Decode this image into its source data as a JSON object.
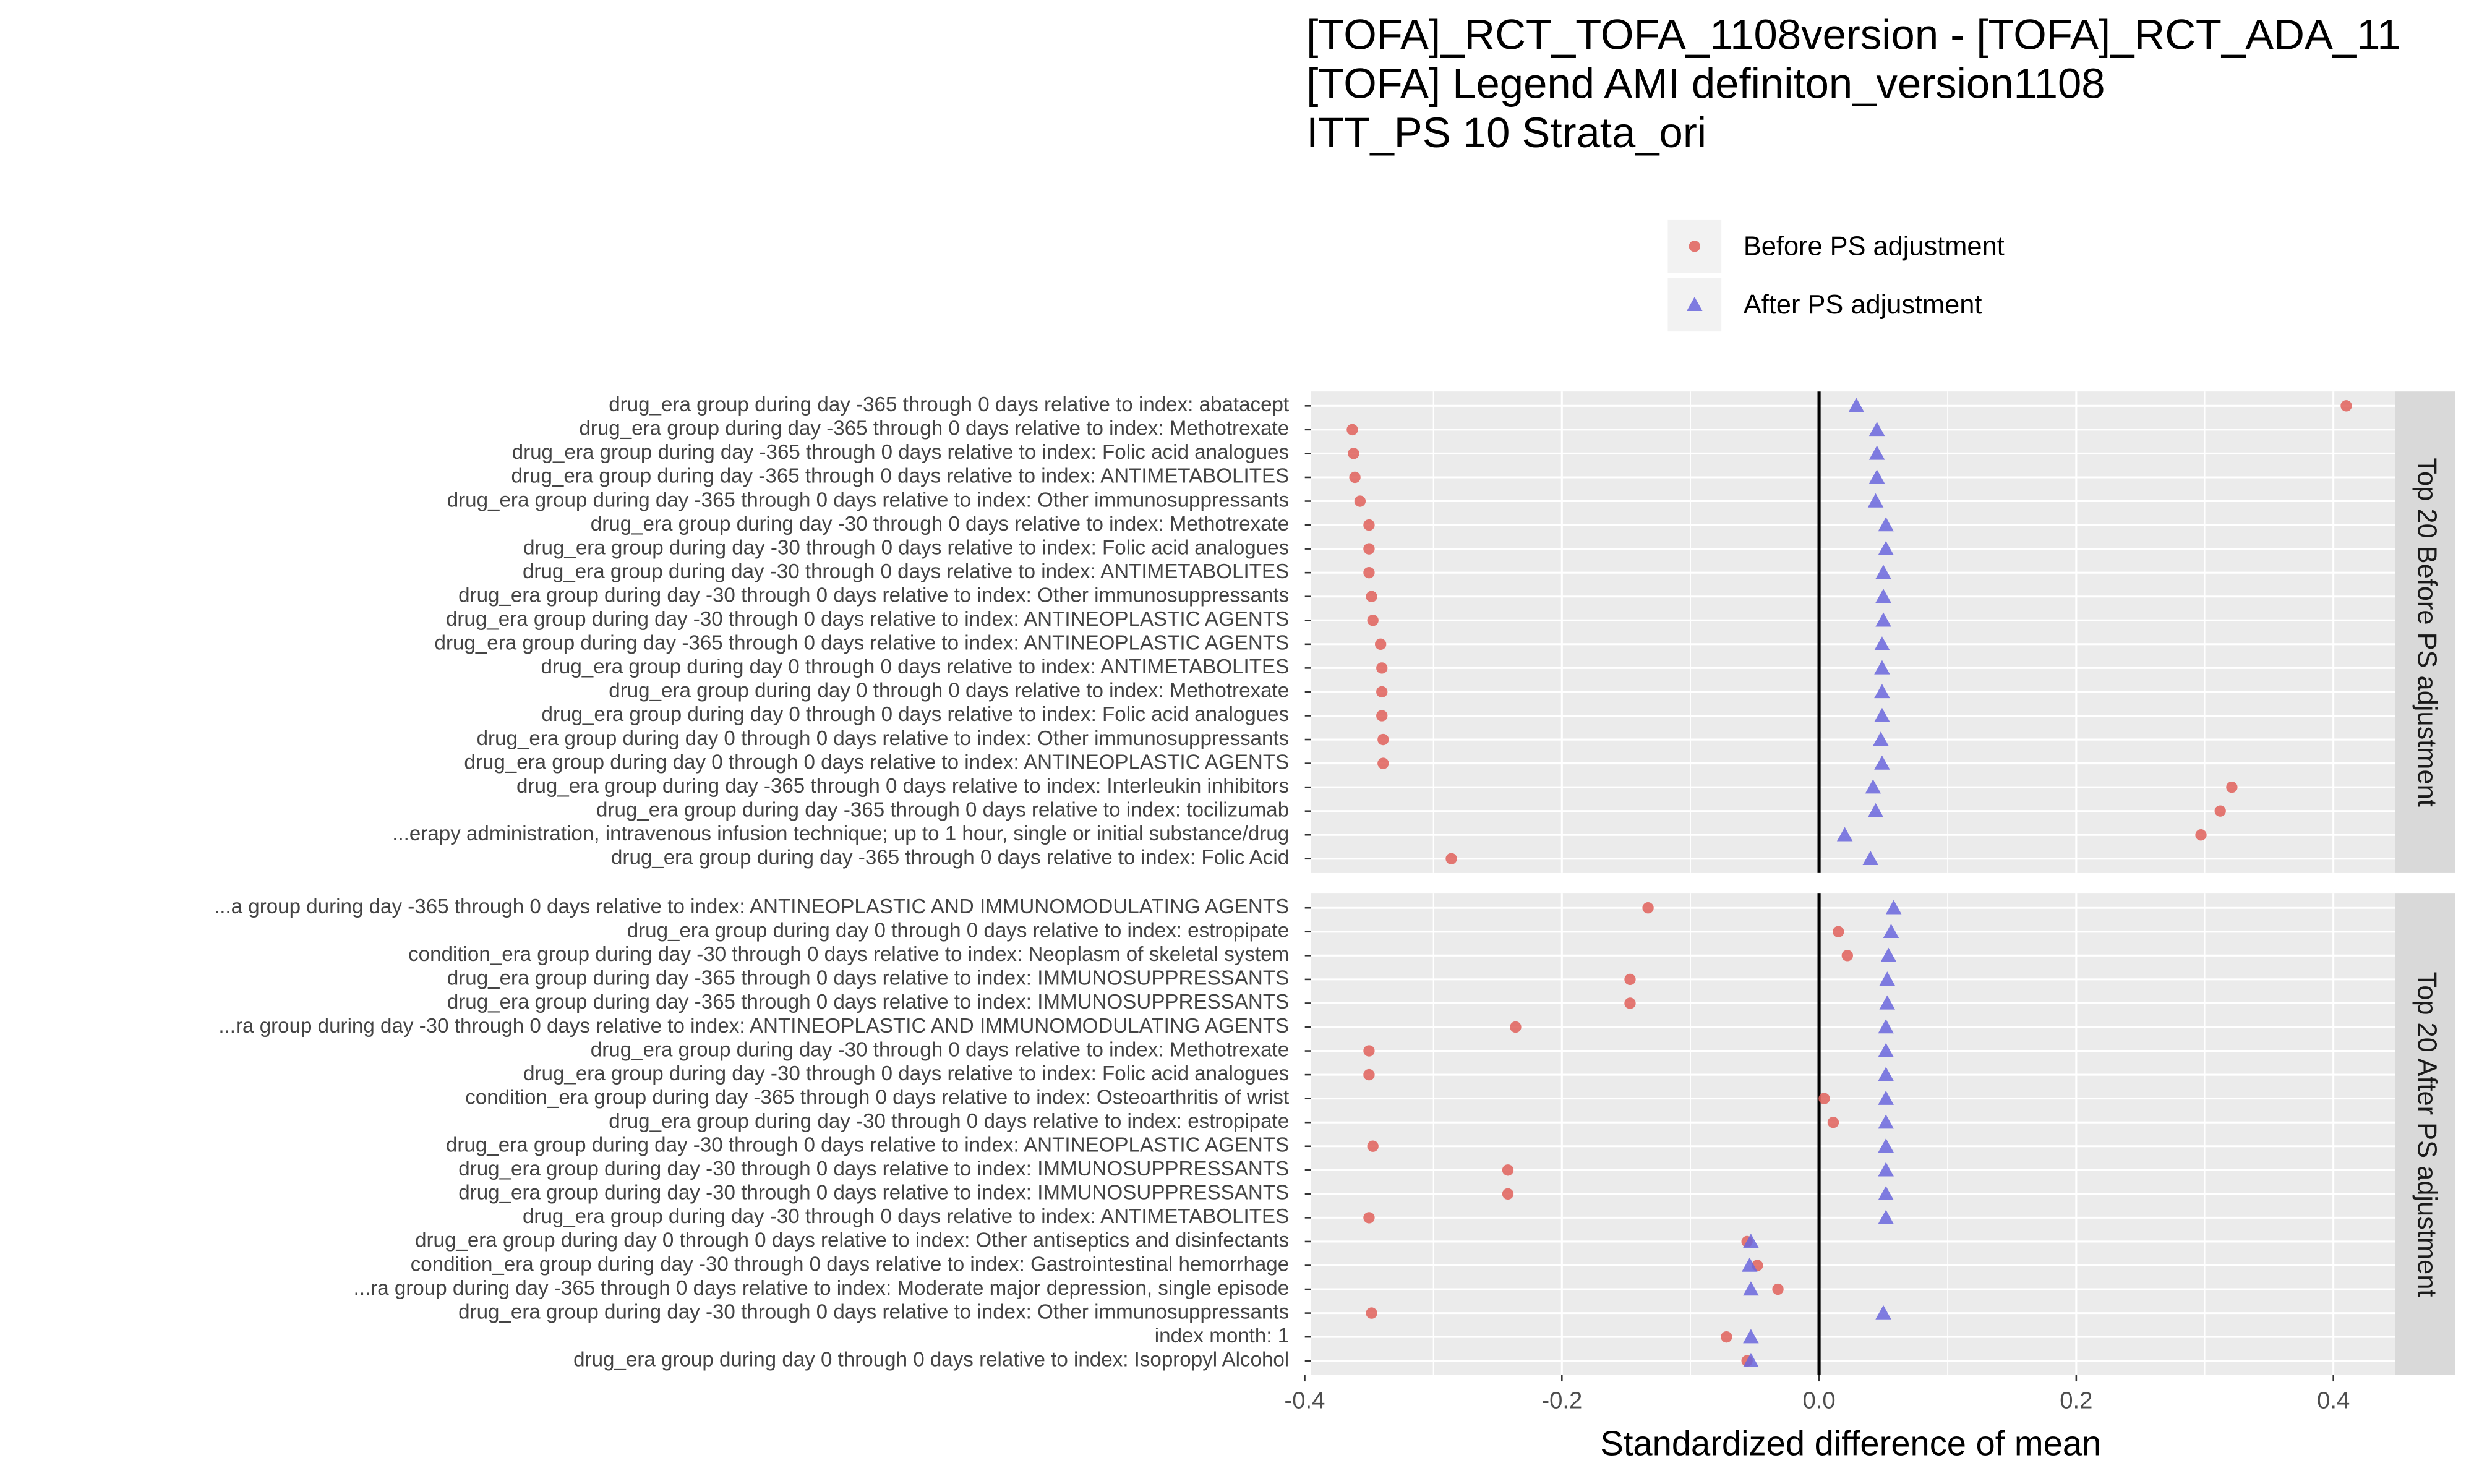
{
  "chart_data": {
    "type": "dot",
    "title": [
      "[TOFA]_RCT_TOFA_1108version - [TOFA]_RCT_ADA_11",
      "[TOFA] Legend AMI definiton_version1108",
      "ITT_PS 10 Strata_ori"
    ],
    "x_label": "Standardized difference of mean",
    "xlim": [
      -0.395,
      0.448
    ],
    "xticks": [
      -0.4,
      -0.2,
      {
        "value": 0,
        "label": "0.0"
      },
      0.2,
      0.4
    ],
    "grid": true,
    "series": [
      {
        "name": "Before PS adjustment",
        "color": "#e0605a",
        "marker": "circle"
      },
      {
        "name": "After PS adjustment",
        "color": "#6a66dd",
        "marker": "triangle"
      }
    ],
    "panels": [
      {
        "title": "Top 20 Before PS adjustment",
        "categories": [
          "drug_era group during day -365 through 0 days relative to index: abatacept",
          "drug_era group during day -365 through 0 days relative to index: Methotrexate",
          "drug_era group during day -365 through 0 days relative to index: Folic acid analogues",
          "drug_era group during day -365 through 0 days relative to index: ANTIMETABOLITES",
          "drug_era group during day -365 through 0 days relative to index: Other immunosuppressants",
          "drug_era group during day -30 through 0 days relative to index: Methotrexate",
          "drug_era group during day -30 through 0 days relative to index: Folic acid analogues",
          "drug_era group during day -30 through 0 days relative to index: ANTIMETABOLITES",
          "drug_era group during day -30 through 0 days relative to index: Other immunosuppressants",
          "drug_era group during day -30 through 0 days relative to index: ANTINEOPLASTIC AGENTS",
          "drug_era group during day -365 through 0 days relative to index: ANTINEOPLASTIC AGENTS",
          "drug_era group during day 0 through 0 days relative to index: ANTIMETABOLITES",
          "drug_era group during day 0 through 0 days relative to index: Methotrexate",
          "drug_era group during day 0 through 0 days relative to index: Folic acid analogues",
          "drug_era group during day 0 through 0 days relative to index: Other immunosuppressants",
          "drug_era group during day 0 through 0 days relative to index: ANTINEOPLASTIC AGENTS",
          "drug_era group during day -365 through 0 days relative to index: Interleukin inhibitors",
          "drug_era group during day -365 through 0 days relative to index: tocilizumab",
          "...erapy administration, intravenous infusion technique; up to 1 hour, single or initial substance/drug",
          "drug_era group during day -365 through 0 days relative to index: Folic Acid"
        ],
        "series": [
          {
            "values": [
              0.41,
              -0.363,
              -0.362,
              -0.361,
              -0.357,
              -0.35,
              -0.35,
              -0.35,
              -0.348,
              -0.347,
              -0.341,
              -0.34,
              -0.34,
              -0.34,
              -0.339,
              -0.339,
              0.321,
              0.312,
              0.297,
              -0.286
            ]
          },
          {
            "values": [
              0.029,
              0.045,
              0.045,
              0.045,
              0.044,
              0.052,
              0.052,
              0.05,
              0.05,
              0.05,
              0.049,
              0.049,
              0.049,
              0.049,
              0.048,
              0.049,
              0.042,
              0.044,
              0.02,
              0.04
            ]
          }
        ]
      },
      {
        "title": "Top 20 After PS adjustment",
        "categories": [
          "...a group during day -365 through 0 days relative to index: ANTINEOPLASTIC AND IMMUNOMODULATING AGENTS",
          "drug_era group during day 0 through 0 days relative to index: estropipate",
          "condition_era group during day -30 through 0 days relative to index: Neoplasm of skeletal system",
          "drug_era group during day -365 through 0 days relative to index: IMMUNOSUPPRESSANTS",
          "drug_era group during day -365 through 0 days relative to index: IMMUNOSUPPRESSANTS",
          "...ra group during day -30 through 0 days relative to index: ANTINEOPLASTIC AND IMMUNOMODULATING AGENTS",
          "drug_era group during day -30 through 0 days relative to index: Methotrexate",
          "drug_era group during day -30 through 0 days relative to index: Folic acid analogues",
          "condition_era group during day -365 through 0 days relative to index: Osteoarthritis of wrist",
          "drug_era group during day -30 through 0 days relative to index: estropipate",
          "drug_era group during day -30 through 0 days relative to index: ANTINEOPLASTIC AGENTS",
          "drug_era group during day -30 through 0 days relative to index: IMMUNOSUPPRESSANTS",
          "drug_era group during day -30 through 0 days relative to index: IMMUNOSUPPRESSANTS",
          "drug_era group during day -30 through 0 days relative to index: ANTIMETABOLITES",
          "drug_era group during day 0 through 0 days relative to index: Other antiseptics and disinfectants",
          "condition_era group during day -30 through 0 days relative to index: Gastrointestinal hemorrhage",
          "...ra group during day -365 through 0 days relative to index: Moderate major depression, single episode",
          "drug_era group during day -30 through 0 days relative to index: Other immunosuppressants",
          "index month: 1",
          "drug_era group during day 0 through 0 days relative to index: Isopropyl Alcohol"
        ],
        "series": [
          {
            "values": [
              -0.133,
              0.015,
              0.022,
              -0.147,
              -0.147,
              -0.236,
              -0.35,
              -0.35,
              0.004,
              0.011,
              -0.347,
              -0.242,
              -0.242,
              -0.35,
              -0.056,
              -0.048,
              -0.032,
              -0.348,
              -0.072,
              -0.056
            ]
          },
          {
            "values": [
              0.058,
              0.056,
              0.054,
              0.053,
              0.053,
              0.052,
              0.052,
              0.052,
              0.052,
              0.052,
              0.052,
              0.052,
              0.052,
              0.052,
              -0.053,
              -0.054,
              -0.053,
              0.05,
              -0.053,
              -0.053
            ]
          }
        ]
      }
    ]
  }
}
